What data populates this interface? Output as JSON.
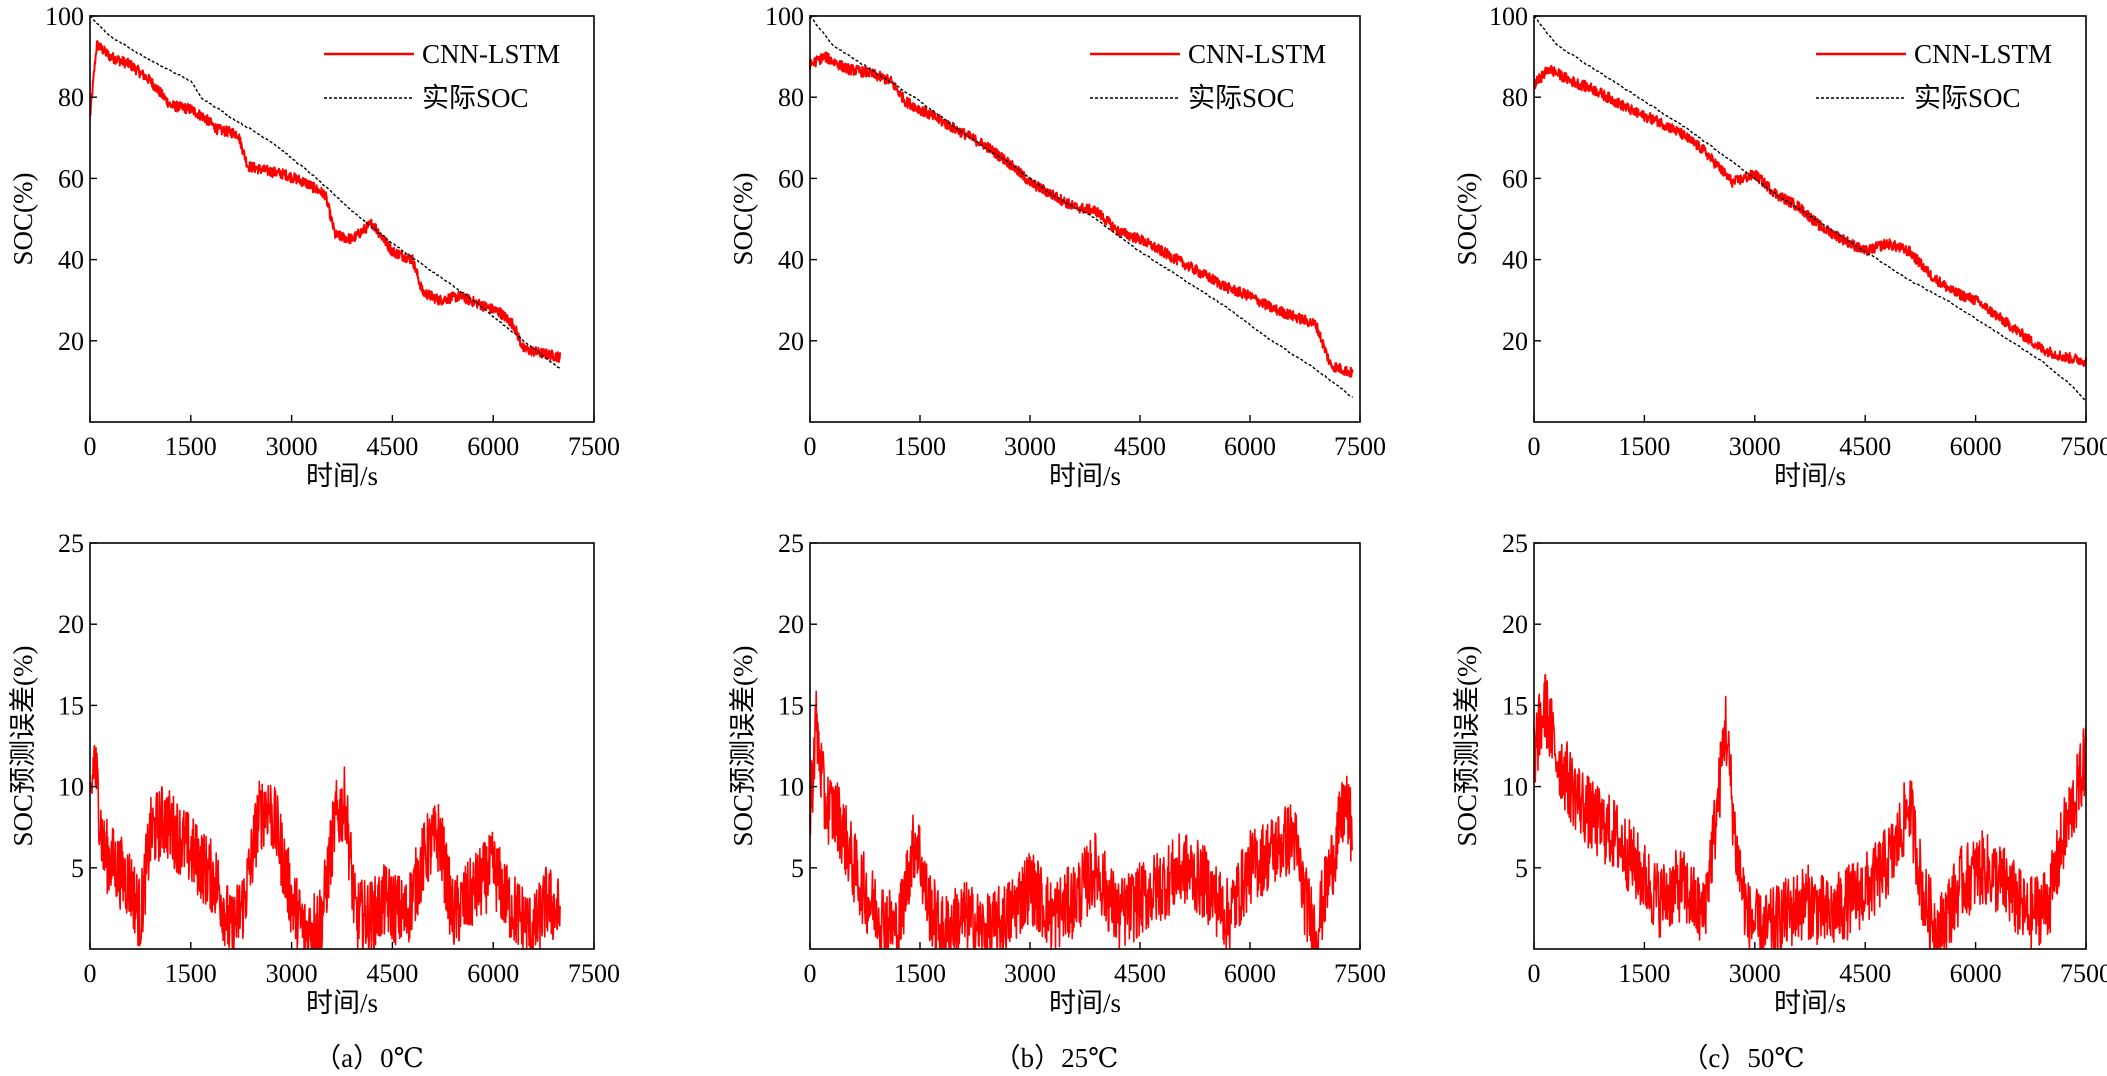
{
  "colors": {
    "prediction": "#ff0000",
    "actual": "#000000",
    "error": "#ff0000",
    "axis": "#000000"
  },
  "legend": {
    "prediction_label": "CNN-LSTM",
    "actual_label": "实际SOC"
  },
  "captions": [
    "（a）0℃",
    "（b）25℃",
    "（c）50℃"
  ],
  "chart_data": [
    {
      "type": "line",
      "panel": "a",
      "title": "",
      "xlabel": "时间/s",
      "ylabel": "SOC(%)",
      "xlim": [
        0,
        7500
      ],
      "ylim": [
        0,
        100
      ],
      "xticks": [
        0,
        1500,
        3000,
        4500,
        6000,
        7500
      ],
      "yticks": [
        20,
        40,
        60,
        80,
        100
      ],
      "grid": false,
      "legend_position": "top-right",
      "series": [
        {
          "name": "CNN-LSTM",
          "x": [
            0,
            100,
            300,
            600,
            900,
            1200,
            1500,
            1700,
            1900,
            2200,
            2350,
            2600,
            2900,
            3200,
            3500,
            3650,
            3900,
            4200,
            4500,
            4800,
            4950,
            5200,
            5500,
            5800,
            6100,
            6300,
            6450,
            6700,
            7000
          ],
          "y": [
            75,
            93,
            90,
            88,
            84,
            78,
            77,
            75,
            72,
            71,
            63,
            62,
            61,
            59,
            56,
            46,
            45,
            49,
            42,
            40,
            32,
            30,
            31,
            29,
            27,
            24,
            18,
            17,
            16
          ]
        },
        {
          "name": "实际SOC",
          "x": [
            0,
            300,
            900,
            1500,
            1650,
            2100,
            2700,
            3300,
            3900,
            4500,
            5100,
            5700,
            6300,
            7000
          ],
          "y": [
            100,
            95,
            89,
            84,
            80,
            75,
            69,
            61,
            52,
            44,
            37,
            30,
            22,
            13
          ]
        }
      ]
    },
    {
      "type": "line",
      "panel": "a-error",
      "title": "",
      "xlabel": "时间/s",
      "ylabel": "SOC预测误差(%)",
      "xlim": [
        0,
        7500
      ],
      "ylim": [
        0,
        25
      ],
      "xticks": [
        0,
        1500,
        3000,
        4500,
        6000,
        7500
      ],
      "yticks": [
        5,
        10,
        15,
        20,
        25
      ],
      "grid": false,
      "series": [
        {
          "name": "SOC预测误差",
          "x": [
            0,
            60,
            200,
            400,
            600,
            750,
            900,
            1100,
            1300,
            1500,
            1700,
            1900,
            2100,
            2300,
            2500,
            2650,
            2800,
            3000,
            3200,
            3450,
            3650,
            3800,
            3950,
            4200,
            4400,
            4700,
            5000,
            5200,
            5400,
            5600,
            5800,
            6000,
            6200,
            6400,
            6600,
            6800,
            7000
          ],
          "y": [
            8,
            12,
            6,
            5,
            4,
            2,
            7,
            8,
            7,
            6,
            5,
            4,
            1,
            3,
            8,
            9,
            7,
            3,
            1,
            2,
            8,
            9,
            2,
            2,
            3,
            2,
            6,
            7,
            2,
            3,
            4,
            5,
            3,
            2,
            1,
            3,
            2
          ]
        }
      ]
    },
    {
      "type": "line",
      "panel": "b",
      "title": "",
      "xlabel": "时间/s",
      "ylabel": "SOC(%)",
      "xlim": [
        0,
        7500
      ],
      "ylim": [
        0,
        100
      ],
      "xticks": [
        0,
        1500,
        3000,
        4500,
        6000,
        7500
      ],
      "yticks": [
        20,
        40,
        60,
        80,
        100
      ],
      "grid": false,
      "legend_position": "top-right",
      "series": [
        {
          "name": "CNN-LSTM",
          "x": [
            0,
            200,
            500,
            800,
            1100,
            1300,
            1500,
            1800,
            2100,
            2400,
            2700,
            3000,
            3300,
            3600,
            3900,
            4200,
            4500,
            4800,
            5100,
            5400,
            5700,
            6000,
            6300,
            6600,
            6900,
            7100,
            7400
          ],
          "y": [
            88,
            90,
            87,
            86,
            84,
            79,
            77,
            74,
            71,
            68,
            64,
            59,
            56,
            53,
            52,
            47,
            45,
            42,
            39,
            36,
            33,
            31,
            28,
            26,
            24,
            14,
            12
          ]
        },
        {
          "name": "实际SOC",
          "x": [
            0,
            300,
            900,
            1500,
            2100,
            2700,
            3300,
            3900,
            4500,
            5100,
            5700,
            6300,
            6900,
            7400
          ],
          "y": [
            100,
            93,
            86,
            79,
            71,
            64,
            56,
            50,
            42,
            35,
            28,
            20,
            13,
            6
          ]
        }
      ]
    },
    {
      "type": "line",
      "panel": "b-error",
      "title": "",
      "xlabel": "时间/s",
      "ylabel": "SOC预测误差(%)",
      "xlim": [
        0,
        7500
      ],
      "ylim": [
        0,
        25
      ],
      "xticks": [
        0,
        1500,
        3000,
        4500,
        6000,
        7500
      ],
      "yticks": [
        5,
        10,
        15,
        20,
        25
      ],
      "grid": false,
      "series": [
        {
          "name": "SOC预测误差",
          "x": [
            0,
            80,
            200,
            400,
            600,
            800,
            1000,
            1200,
            1350,
            1450,
            1600,
            1800,
            2100,
            2400,
            2700,
            3000,
            3300,
            3600,
            3900,
            4200,
            4500,
            4800,
            5100,
            5400,
            5700,
            6000,
            6300,
            6600,
            6750,
            6900,
            7100,
            7300,
            7400
          ],
          "y": [
            8,
            14,
            9,
            8,
            5,
            3,
            2,
            1,
            5,
            7,
            3,
            1,
            2,
            1,
            2,
            4,
            2,
            3,
            5,
            2,
            3,
            4,
            5,
            4,
            2,
            5,
            6,
            7,
            3,
            1,
            5,
            9,
            7
          ]
        }
      ]
    },
    {
      "type": "line",
      "panel": "c",
      "title": "",
      "xlabel": "时间/s",
      "ylabel": "SOC(%)",
      "xlim": [
        0,
        7500
      ],
      "ylim": [
        0,
        100
      ],
      "xticks": [
        0,
        1500,
        3000,
        4500,
        6000,
        7500
      ],
      "yticks": [
        20,
        40,
        60,
        80,
        100
      ],
      "grid": false,
      "legend_position": "top-right",
      "series": [
        {
          "name": "CNN-LSTM",
          "x": [
            0,
            200,
            500,
            800,
            1100,
            1400,
            1700,
            2000,
            2300,
            2500,
            2700,
            3000,
            3300,
            3600,
            3900,
            4200,
            4500,
            4800,
            5100,
            5400,
            5700,
            6000,
            6300,
            6600,
            6900,
            7200,
            7500
          ],
          "y": [
            83,
            87,
            84,
            82,
            79,
            76,
            74,
            71,
            67,
            63,
            59,
            61,
            56,
            53,
            48,
            45,
            42,
            44,
            42,
            36,
            32,
            30,
            26,
            22,
            18,
            16,
            15
          ]
        },
        {
          "name": "实际SOC",
          "x": [
            0,
            300,
            900,
            1500,
            2100,
            2700,
            3300,
            3900,
            4500,
            5100,
            5700,
            6300,
            6900,
            7300,
            7500
          ],
          "y": [
            100,
            93,
            86,
            79,
            72,
            64,
            56,
            49,
            42,
            35,
            29,
            22,
            15,
            9,
            5
          ]
        }
      ]
    },
    {
      "type": "line",
      "panel": "c-error",
      "title": "",
      "xlabel": "时间/s",
      "ylabel": "SOC预测误差(%)",
      "xlim": [
        0,
        7500
      ],
      "ylim": [
        0,
        25
      ],
      "xticks": [
        0,
        1500,
        3000,
        4500,
        6000,
        7500
      ],
      "yticks": [
        5,
        10,
        15,
        20,
        25
      ],
      "grid": false,
      "series": [
        {
          "name": "SOC预测误差",
          "x": [
            0,
            150,
            300,
            500,
            800,
            1100,
            1400,
            1700,
            2000,
            2300,
            2500,
            2600,
            2750,
            2900,
            3100,
            3400,
            3700,
            4000,
            4300,
            4600,
            4900,
            5100,
            5300,
            5500,
            5800,
            6100,
            6400,
            6700,
            7000,
            7200,
            7400,
            7500
          ],
          "y": [
            12,
            15,
            12,
            10,
            8,
            7,
            5,
            3,
            4,
            2,
            9,
            14,
            6,
            2,
            1,
            2,
            3,
            2,
            3,
            4,
            6,
            9,
            3,
            1,
            4,
            5,
            4,
            2,
            3,
            7,
            10,
            12
          ]
        }
      ]
    }
  ]
}
